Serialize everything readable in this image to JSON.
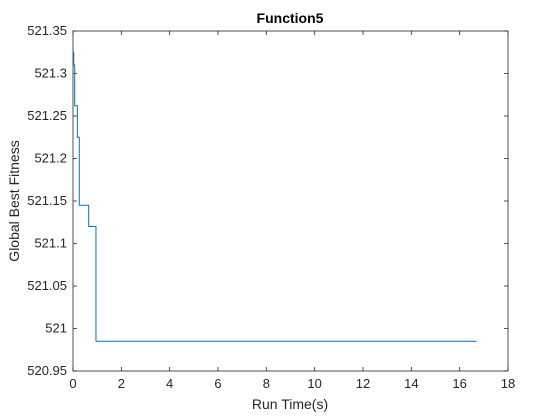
{
  "chart_data": {
    "type": "line",
    "title": "Function5",
    "xlabel": "Run Time(s)",
    "ylabel": "Global Best Fitness",
    "xlim": [
      0,
      18
    ],
    "ylim": [
      520.95,
      521.35
    ],
    "x_ticks": [
      0,
      2,
      4,
      6,
      8,
      10,
      12,
      14,
      16,
      18
    ],
    "y_ticks": [
      520.95,
      521,
      521.05,
      521.1,
      521.15,
      521.2,
      521.25,
      521.3,
      521.35
    ],
    "x_tick_labels": [
      "0",
      "2",
      "4",
      "6",
      "8",
      "10",
      "12",
      "14",
      "16",
      "18"
    ],
    "y_tick_labels": [
      "520.95",
      "521",
      "521.05",
      "521.1",
      "521.15",
      "521.2",
      "521.25",
      "521.3",
      "521.35"
    ],
    "grid": false,
    "series": [
      {
        "color": "#0072BD",
        "step": true,
        "points": [
          [
            0,
            521.325
          ],
          [
            0.03,
            521.325
          ],
          [
            0.03,
            521.31
          ],
          [
            0.07,
            521.31
          ],
          [
            0.07,
            521.262
          ],
          [
            0.18,
            521.262
          ],
          [
            0.18,
            521.225
          ],
          [
            0.26,
            521.225
          ],
          [
            0.26,
            521.145
          ],
          [
            0.65,
            521.145
          ],
          [
            0.65,
            521.12
          ],
          [
            0.95,
            521.12
          ],
          [
            0.95,
            520.985
          ],
          [
            16.7,
            520.985
          ]
        ]
      }
    ]
  }
}
